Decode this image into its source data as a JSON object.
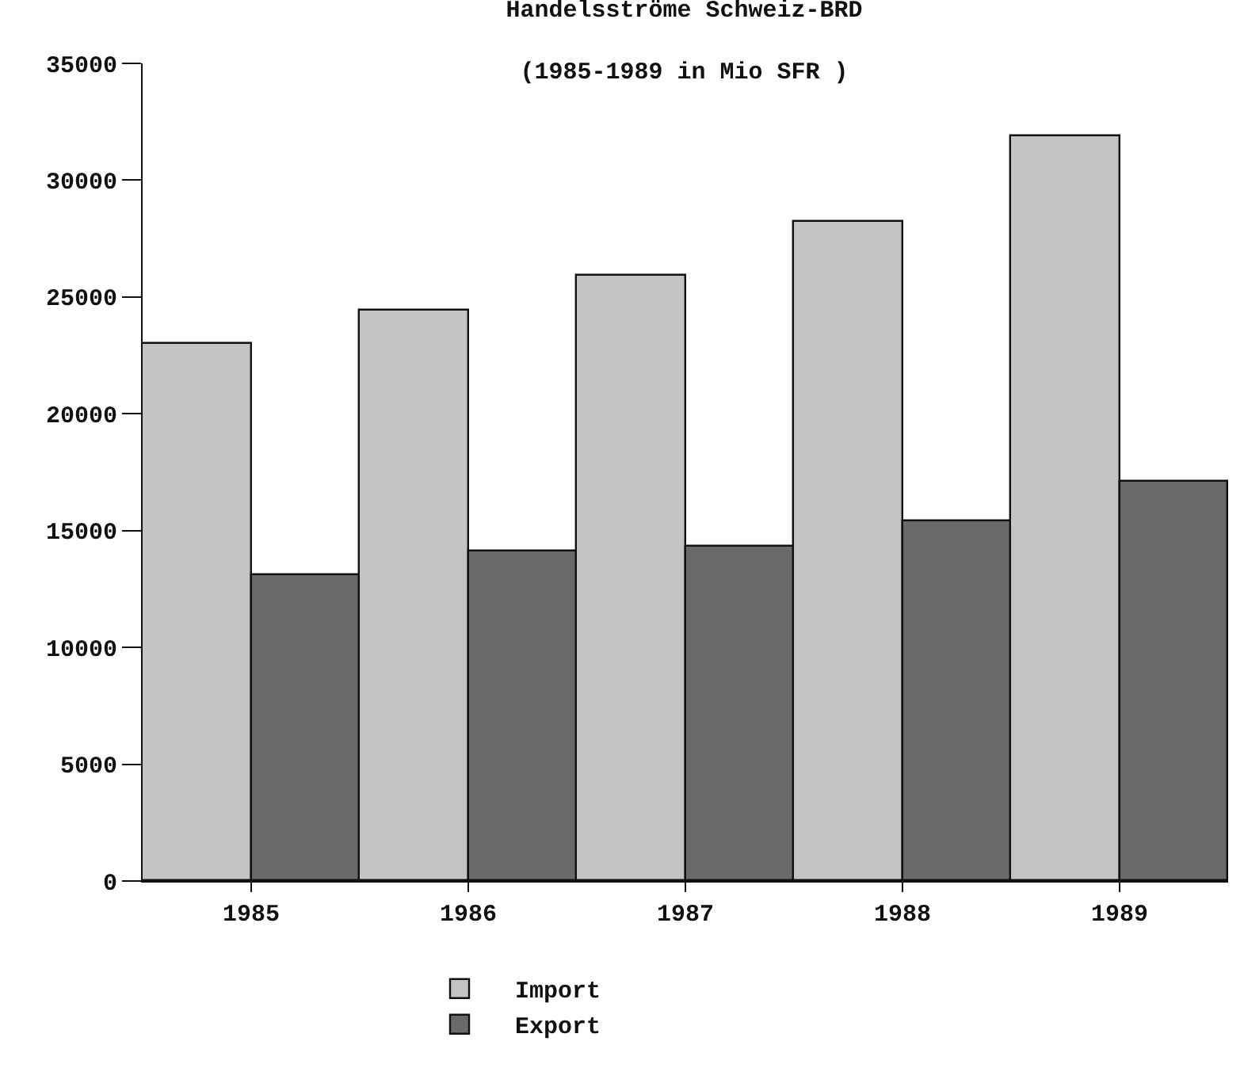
{
  "chart_data": {
    "type": "bar",
    "title": "Handelsströme Schweiz-BRD",
    "subtitle": "(1985-1989 in Mio SFR )",
    "categories": [
      "1985",
      "1986",
      "1987",
      "1988",
      "1989"
    ],
    "series": [
      {
        "name": "Import",
        "color": "#c4c4c4",
        "values": [
          23000,
          24400,
          25900,
          28200,
          31900
        ]
      },
      {
        "name": "Export",
        "color": "#6a6a6a",
        "values": [
          13100,
          14100,
          14300,
          15400,
          17100
        ]
      }
    ],
    "ylim": [
      0,
      35000
    ],
    "yticks": [
      0,
      5000,
      10000,
      15000,
      20000,
      25000,
      30000,
      35000
    ],
    "grid": false,
    "legend": "bottom"
  }
}
